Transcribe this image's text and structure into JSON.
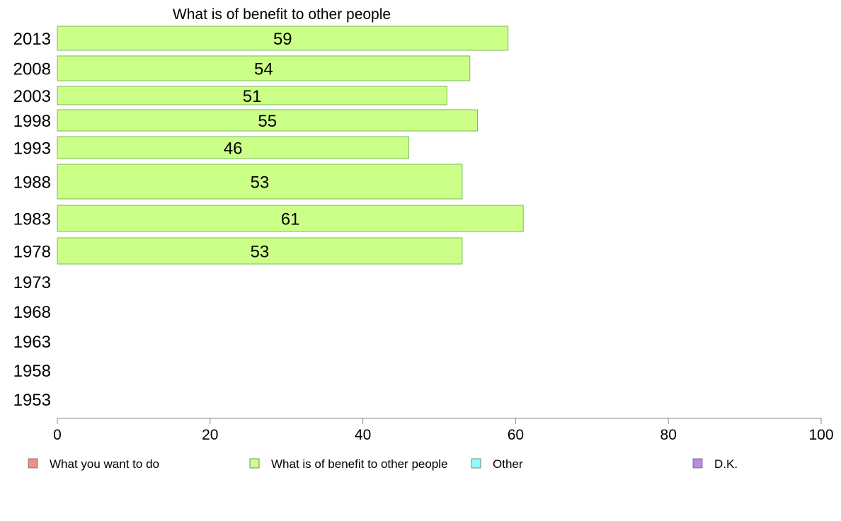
{
  "chart_data": {
    "type": "bar",
    "orientation": "horizontal",
    "title": "What is of benefit to other people",
    "categories": [
      "2013",
      "2008",
      "2003",
      "1998",
      "1993",
      "1988",
      "1983",
      "1978",
      "1973",
      "1968",
      "1963",
      "1958",
      "1953"
    ],
    "series": [
      {
        "name": "What is of benefit to other people",
        "values": [
          59,
          54,
          51,
          55,
          46,
          53,
          61,
          53,
          null,
          null,
          null,
          null,
          null
        ]
      }
    ],
    "xlim": [
      0,
      100
    ],
    "xticks": [
      0,
      20,
      40,
      60,
      80,
      100
    ],
    "grid": false,
    "legend": {
      "position": "bottom",
      "entries": [
        {
          "label": "What you want to do",
          "color": "#f28e86"
        },
        {
          "label": "What is of benefit to other people",
          "color": "#ccff88"
        },
        {
          "label": "Other",
          "color": "#88ffff"
        },
        {
          "label": "D.K.",
          "color": "#bb88ee"
        }
      ]
    },
    "colors": {
      "bar_fill": "#ccff88",
      "bar_stroke": "#77bb55",
      "axis": "#888888"
    }
  }
}
